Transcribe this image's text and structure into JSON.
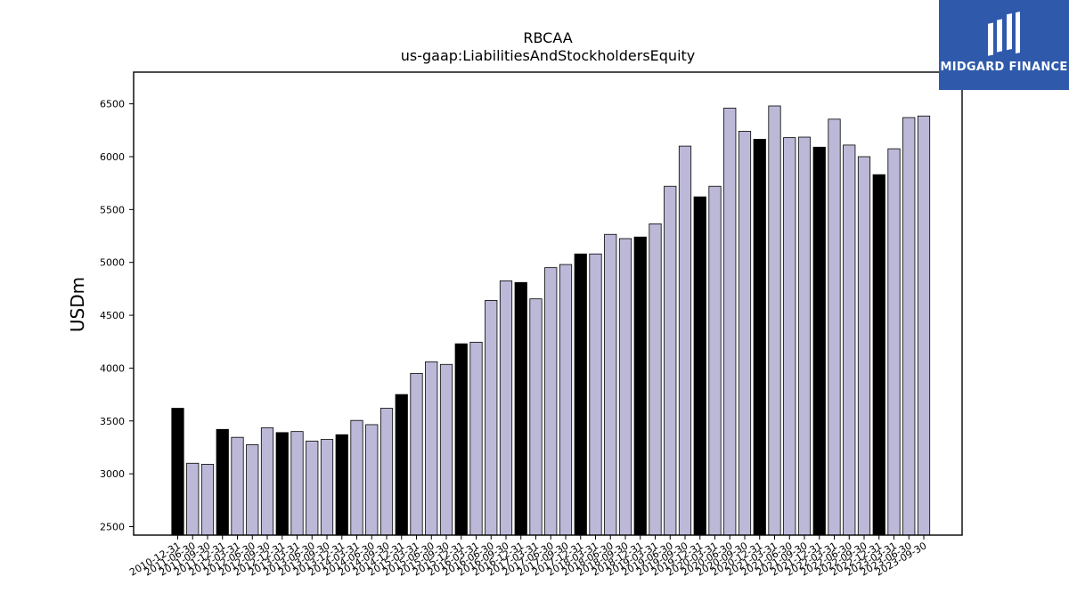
{
  "brand": {
    "name": "MIDGARD FINANCE",
    "color": "#2f5aab",
    "text_color": "#ffffff"
  },
  "chart_data": {
    "type": "bar",
    "title": "RBCAA",
    "subtitle": "us-gaap:LiabilitiesAndStockholdersEquity",
    "ylabel": "USDm",
    "xlabel": "",
    "ylim": [
      2420,
      6800
    ],
    "yticks": [
      2500,
      3000,
      3500,
      4000,
      4500,
      5000,
      5500,
      6000,
      6500
    ],
    "grid": false,
    "colors": {
      "fy": "#000000",
      "quarter": "#bcb8d8",
      "edge": "#000000"
    },
    "categories": [
      "2010-12-31",
      "2011-06-30",
      "2011-09-30",
      "2011-12-31",
      "2012-03-31",
      "2012-06-30",
      "2012-09-30",
      "2012-12-31",
      "2013-03-31",
      "2013-06-30",
      "2013-09-30",
      "2013-12-31",
      "2014-03-31",
      "2014-06-30",
      "2014-09-30",
      "2014-12-31",
      "2015-03-31",
      "2015-06-30",
      "2015-09-30",
      "2015-12-31",
      "2016-03-31",
      "2016-06-30",
      "2016-09-30",
      "2016-12-31",
      "2017-03-31",
      "2017-06-30",
      "2017-09-30",
      "2017-12-31",
      "2018-03-31",
      "2018-06-30",
      "2018-09-30",
      "2018-12-31",
      "2019-03-31",
      "2019-06-30",
      "2019-09-30",
      "2019-12-31",
      "2020-03-31",
      "2020-06-30",
      "2020-09-30",
      "2020-12-31",
      "2021-03-31",
      "2021-06-30",
      "2021-09-30",
      "2021-12-31",
      "2022-03-31",
      "2022-06-30",
      "2022-09-30",
      "2022-12-31",
      "2023-03-31",
      "2023-06-30",
      "2023-09-30"
    ],
    "values": [
      3620,
      3100,
      3090,
      3420,
      3345,
      3275,
      3435,
      3390,
      3400,
      3310,
      3325,
      3370,
      3505,
      3465,
      3620,
      3750,
      3950,
      4060,
      4035,
      4230,
      4245,
      4640,
      4825,
      4810,
      4655,
      4950,
      4980,
      5080,
      5080,
      5265,
      5225,
      5240,
      5365,
      5720,
      6100,
      5620,
      5720,
      6460,
      6240,
      6165,
      6480,
      6180,
      6185,
      6090,
      6355,
      6110,
      6000,
      5830,
      6075,
      6370,
      6385
    ],
    "fiscal_year_end": [
      true,
      false,
      false,
      true,
      false,
      false,
      false,
      true,
      false,
      false,
      false,
      true,
      false,
      false,
      false,
      true,
      false,
      false,
      false,
      true,
      false,
      false,
      false,
      true,
      false,
      false,
      false,
      true,
      false,
      false,
      false,
      true,
      false,
      false,
      false,
      true,
      false,
      false,
      false,
      true,
      false,
      false,
      false,
      true,
      false,
      false,
      false,
      true,
      false,
      false,
      false
    ]
  }
}
